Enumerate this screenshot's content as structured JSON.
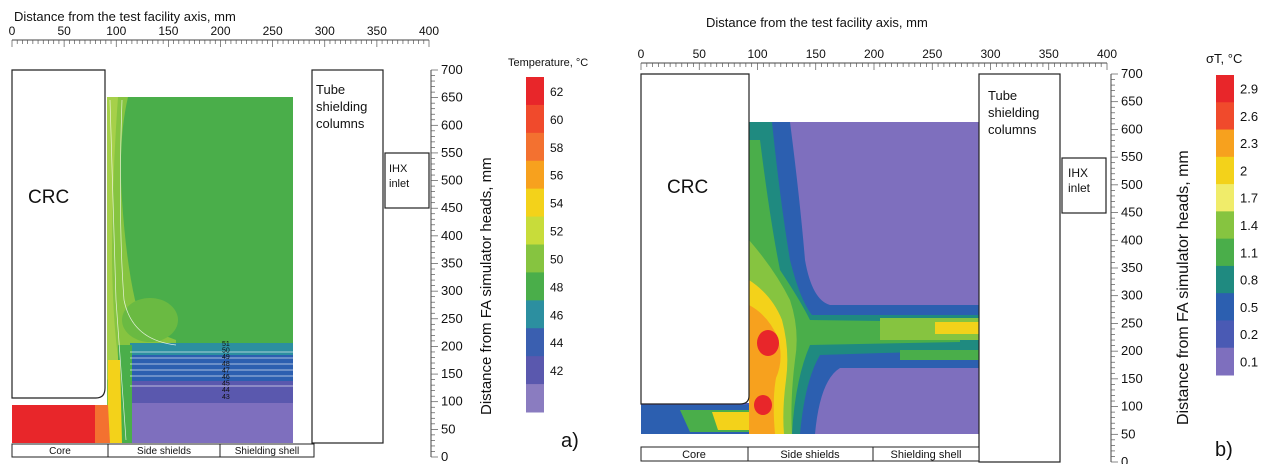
{
  "chart_data": [
    {
      "panel": "a)",
      "type": "heatmap",
      "title": "Distance  from the test facility axis, mm",
      "xlabel": "Distance  from the test facility axis, mm",
      "ylabel": "Distance from FA simulator heads, mm",
      "xlim": [
        0,
        400
      ],
      "ylim": [
        0,
        700
      ],
      "xticks": [
        0,
        50,
        100,
        150,
        200,
        250,
        300,
        350,
        400
      ],
      "yticks": [
        0,
        50,
        100,
        150,
        200,
        250,
        300,
        350,
        400,
        450,
        500,
        550,
        600,
        650,
        700
      ],
      "colorbar": {
        "label": "Temperature, °C",
        "levels": [
          62,
          60,
          58,
          56,
          54,
          52,
          50,
          48,
          46,
          44,
          42
        ],
        "colors": [
          "#e8262a",
          "#f04a2c",
          "#f37130",
          "#f7a11e",
          "#f3d21a",
          "#c8dc3a",
          "#86c440",
          "#4aae4a",
          "#2c8fa0",
          "#3a5fb0",
          "#5a58ae",
          "#8a7cc0"
        ]
      },
      "annotations": [
        "CRC",
        "Tube\nshielding\ncolumns",
        "IHX\ninlet"
      ],
      "regions": [
        "Core",
        "Side shields",
        "Shielding shell"
      ],
      "contour_labels": [
        "51",
        "50",
        "49",
        "48",
        "47",
        "46",
        "45",
        "44",
        "43"
      ]
    },
    {
      "panel": "b)",
      "type": "heatmap",
      "title": "Distance  from the test facility axis, mm",
      "xlabel": "Distance  from the test facility axis, mm",
      "ylabel": "Distance from FA simulator heads, mm",
      "xlim": [
        0,
        400
      ],
      "ylim": [
        0,
        700
      ],
      "xticks": [
        0,
        50,
        100,
        150,
        200,
        250,
        300,
        350,
        400
      ],
      "yticks": [
        0,
        50,
        100,
        150,
        200,
        250,
        300,
        350,
        400,
        450,
        500,
        550,
        600,
        650,
        700
      ],
      "colorbar": {
        "label": "σT, °C",
        "levels": [
          2.9,
          2.6,
          2.3,
          2,
          1.7,
          1.4,
          1.1,
          0.8,
          0.5,
          0.2,
          0.1
        ],
        "colors": [
          "#e8262a",
          "#f04a2c",
          "#f7a11e",
          "#f3d21a",
          "#f0ec6a",
          "#86c440",
          "#4aae4a",
          "#1f8a80",
          "#2c5fb0",
          "#4a5ab4",
          "#7e6fbe"
        ]
      },
      "annotations": [
        "CRC",
        "Tube\nshielding\ncolumns",
        "IHX\ninlet"
      ],
      "regions": [
        "Core",
        "Side shields",
        "Shielding shell"
      ]
    }
  ]
}
